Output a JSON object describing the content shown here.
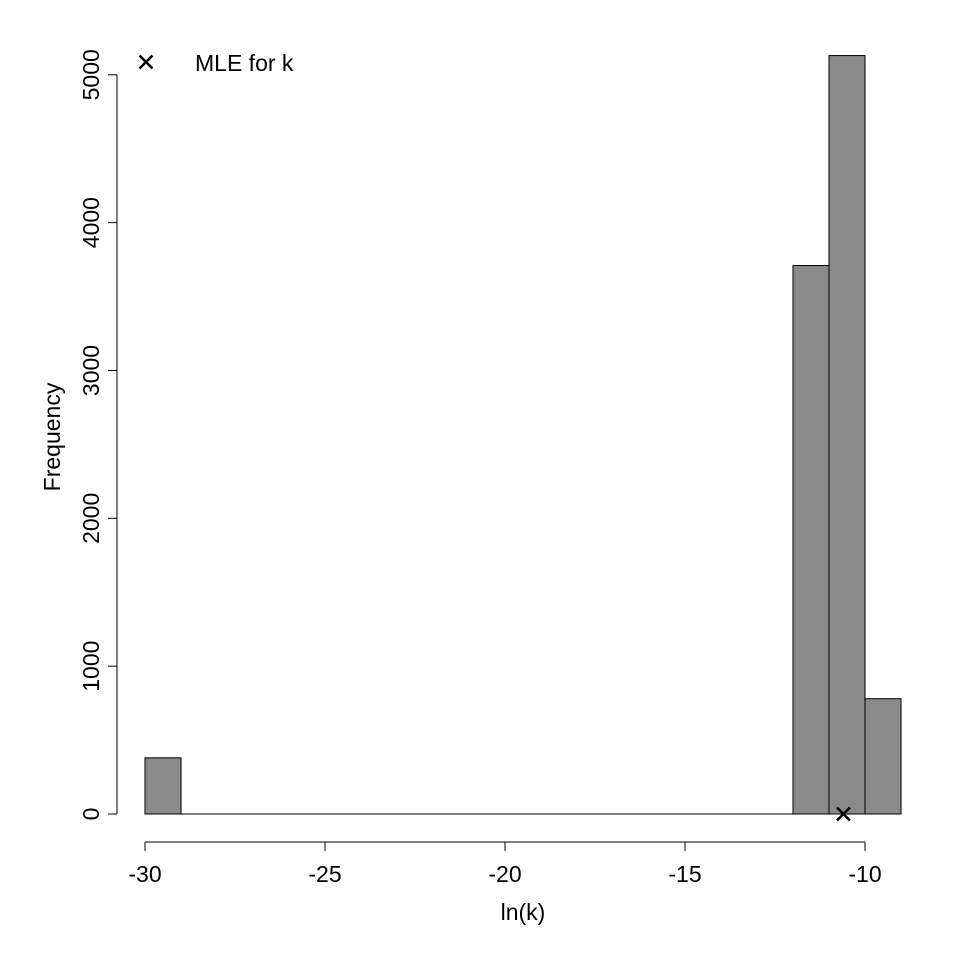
{
  "chart_data": {
    "type": "bar",
    "title": "",
    "xlabel": "ln(k)",
    "ylabel": "Frequency",
    "xlim": [
      -30,
      -9
    ],
    "ylim": [
      0,
      5100
    ],
    "bins": [
      {
        "x0": -30,
        "x1": -29,
        "count": 380
      },
      {
        "x0": -12,
        "x1": -11,
        "count": 3710
      },
      {
        "x0": -11,
        "x1": -10,
        "count": 5130
      },
      {
        "x0": -10,
        "x1": -9,
        "count": 780
      }
    ],
    "x_ticks": [
      -30,
      -25,
      -20,
      -15,
      -10
    ],
    "y_ticks": [
      0,
      1000,
      2000,
      3000,
      4000,
      5000
    ],
    "x_tick_labels": [
      "-30",
      "-25",
      "-20",
      "-15",
      "-10"
    ],
    "y_tick_labels": [
      "0",
      "1000",
      "2000",
      "3000",
      "4000",
      "5000"
    ],
    "bar_color": "#8a8a8a",
    "bar_border_color": "#000000",
    "mle": {
      "x": -10.6,
      "y": 0
    },
    "legend": {
      "label": "MLE for k",
      "marker": "cross",
      "position": "top-left"
    },
    "grid": false
  }
}
